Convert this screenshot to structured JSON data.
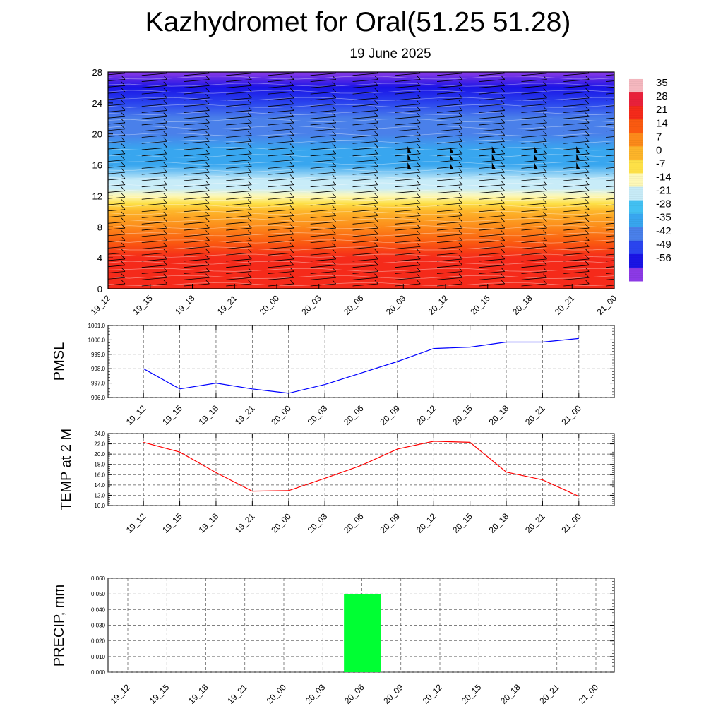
{
  "header": {
    "title": "Kazhydromet for Oral(51.25 51.28)",
    "subtitle": "19 June 2025"
  },
  "chart_data": [
    {
      "type": "heatmap",
      "name": "vertical cross-section",
      "ylim": [
        0,
        28
      ],
      "yticks": [
        "0",
        "4",
        "8",
        "12",
        "16",
        "20",
        "24",
        "28"
      ],
      "x": [
        "19_12",
        "19_15",
        "19_18",
        "19_21",
        "20_00",
        "20_03",
        "20_06",
        "20_09",
        "20_12",
        "20_15",
        "20_18",
        "20_21",
        "21_00"
      ],
      "colorbar": {
        "labels": [
          "35",
          "28",
          "21",
          "14",
          "7",
          "0",
          "-7",
          "-14",
          "-21",
          "-28",
          "-35",
          "-42",
          "-49",
          "-56"
        ],
        "colors": [
          "#f5b8bf",
          "#e8203a",
          "#f52a1a",
          "#fa5a10",
          "#fc8a1a",
          "#fdb52a",
          "#fde047",
          "#fdf8b8",
          "#c8ecf8",
          "#42c0f2",
          "#38a6ef",
          "#4a80ea",
          "#2a44ee",
          "#1a14e6",
          "#8c3ae6"
        ]
      },
      "temperature_profile": {
        "heights": [
          0,
          2,
          4,
          6,
          8,
          10,
          11,
          12,
          13,
          14,
          16,
          18,
          20,
          22,
          24,
          26,
          28
        ],
        "values": [
          28,
          26,
          22,
          17,
          10,
          3,
          0,
          -7,
          -14,
          -20,
          -28,
          -32,
          -36,
          -40,
          -46,
          -52,
          -56
        ]
      },
      "wind_barbs": "rows of wind barbs at each time column; pennants near 17 km from 20_09 onward"
    },
    {
      "type": "line",
      "name": "pmsl",
      "ylabel": "PMSL",
      "ylim": [
        996.0,
        1001.0
      ],
      "yticks": [
        "996.0",
        "997.0",
        "998.0",
        "999.0",
        "1000.0",
        "1001.0"
      ],
      "x": [
        "19_12",
        "19_15",
        "19_18",
        "19_21",
        "20_00",
        "20_03",
        "20_06",
        "20_09",
        "20_12",
        "20_15",
        "20_18",
        "20_21",
        "21_00"
      ],
      "series": [
        {
          "values": [
            998.0,
            996.6,
            997.0,
            996.6,
            996.3,
            996.9,
            997.7,
            998.5,
            999.4,
            999.5,
            999.85,
            999.85,
            1000.1
          ]
        }
      ],
      "color": "#0000ff"
    },
    {
      "type": "line",
      "name": "temp",
      "ylabel": "TEMP at 2 M",
      "ylim": [
        10.0,
        24.0
      ],
      "yticks": [
        "10.0",
        "12.0",
        "14.0",
        "16.0",
        "18.0",
        "20.0",
        "22.0",
        "24.0"
      ],
      "x": [
        "19_12",
        "19_15",
        "19_18",
        "19_21",
        "20_00",
        "20_03",
        "20_06",
        "20_09",
        "20_12",
        "20_15",
        "20_18",
        "20_21",
        "21_00"
      ],
      "series": [
        {
          "values": [
            22.3,
            20.4,
            16.4,
            12.8,
            12.9,
            15.3,
            17.8,
            21.0,
            22.5,
            22.3,
            16.5,
            15.0,
            11.8
          ]
        }
      ],
      "color": "#ff0000"
    },
    {
      "type": "bar",
      "name": "precip",
      "ylabel": "PRECIP, mm",
      "ylim": [
        0,
        0.06
      ],
      "yticks": [
        "0.000",
        "0.010",
        "0.020",
        "0.030",
        "0.040",
        "0.050",
        "0.060"
      ],
      "x": [
        "19_12",
        "19_15",
        "19_18",
        "19_21",
        "20_00",
        "20_03",
        "20_06",
        "20_09",
        "20_12",
        "20_15",
        "20_18",
        "20_21",
        "21_00"
      ],
      "values": [
        0,
        0,
        0,
        0,
        0,
        0,
        0.05,
        0,
        0,
        0,
        0,
        0,
        0
      ],
      "color": "#00ff33"
    }
  ]
}
